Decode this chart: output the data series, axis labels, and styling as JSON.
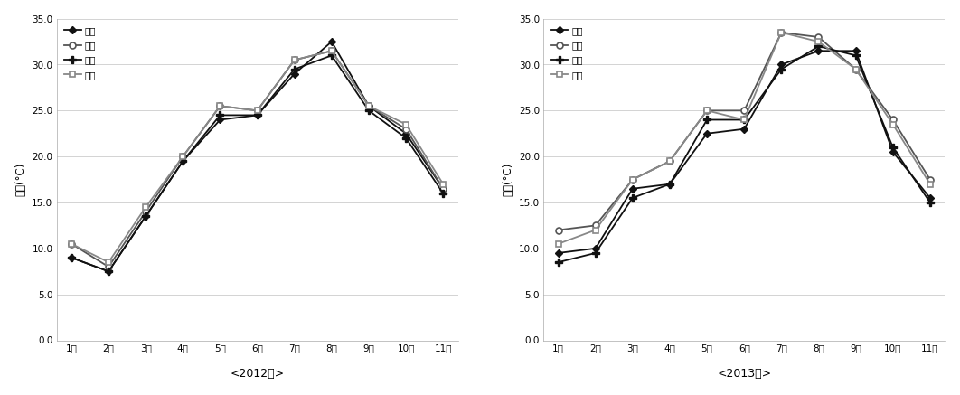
{
  "months": [
    "1월",
    "2월",
    "3월",
    "4월",
    "5월",
    "6월",
    "7월",
    "8월",
    "9월",
    "10월",
    "11월"
  ],
  "year2012": {
    "성산": [
      9.0,
      7.5,
      13.5,
      19.5,
      24.0,
      24.5,
      29.0,
      32.5,
      25.5,
      22.5,
      16.5
    ],
    "신효": [
      10.5,
      8.0,
      14.0,
      20.0,
      25.5,
      25.0,
      30.5,
      31.5,
      25.5,
      23.0,
      16.5
    ],
    "고산": [
      9.0,
      7.5,
      13.5,
      19.5,
      24.5,
      24.5,
      29.5,
      31.0,
      25.0,
      22.0,
      16.0
    ],
    "신촌": [
      10.5,
      8.5,
      14.5,
      20.0,
      25.5,
      25.0,
      30.5,
      31.5,
      25.5,
      23.5,
      17.0
    ]
  },
  "year2013": {
    "성산": [
      9.5,
      10.0,
      16.5,
      17.0,
      22.5,
      23.0,
      30.0,
      31.5,
      31.5,
      20.5,
      15.5
    ],
    "신효": [
      12.0,
      12.5,
      17.5,
      19.5,
      25.0,
      25.0,
      33.5,
      33.0,
      29.5,
      24.0,
      17.5
    ],
    "고산": [
      8.5,
      9.5,
      15.5,
      17.0,
      24.0,
      24.0,
      29.5,
      32.0,
      31.0,
      21.0,
      15.0
    ],
    "신촌": [
      10.5,
      12.0,
      17.5,
      19.5,
      25.0,
      24.0,
      33.5,
      32.5,
      29.5,
      23.5,
      17.0
    ]
  },
  "legend_labels_2012": [
    "성산",
    "신효",
    "고산",
    "신촌"
  ],
  "legend_labels_2013": [
    "성산",
    "신효",
    "고산",
    "신촌"
  ],
  "subtitle_2012": "<2012년>",
  "subtitle_2013": "<2013년>",
  "ylabel": "기온(°C)",
  "ylim": [
    0.0,
    35.0
  ],
  "yticks": [
    0.0,
    5.0,
    10.0,
    15.0,
    20.0,
    25.0,
    30.0,
    35.0
  ],
  "background_color": "#ffffff",
  "fig_background": "#ffffff",
  "grid_color": "#cccccc"
}
